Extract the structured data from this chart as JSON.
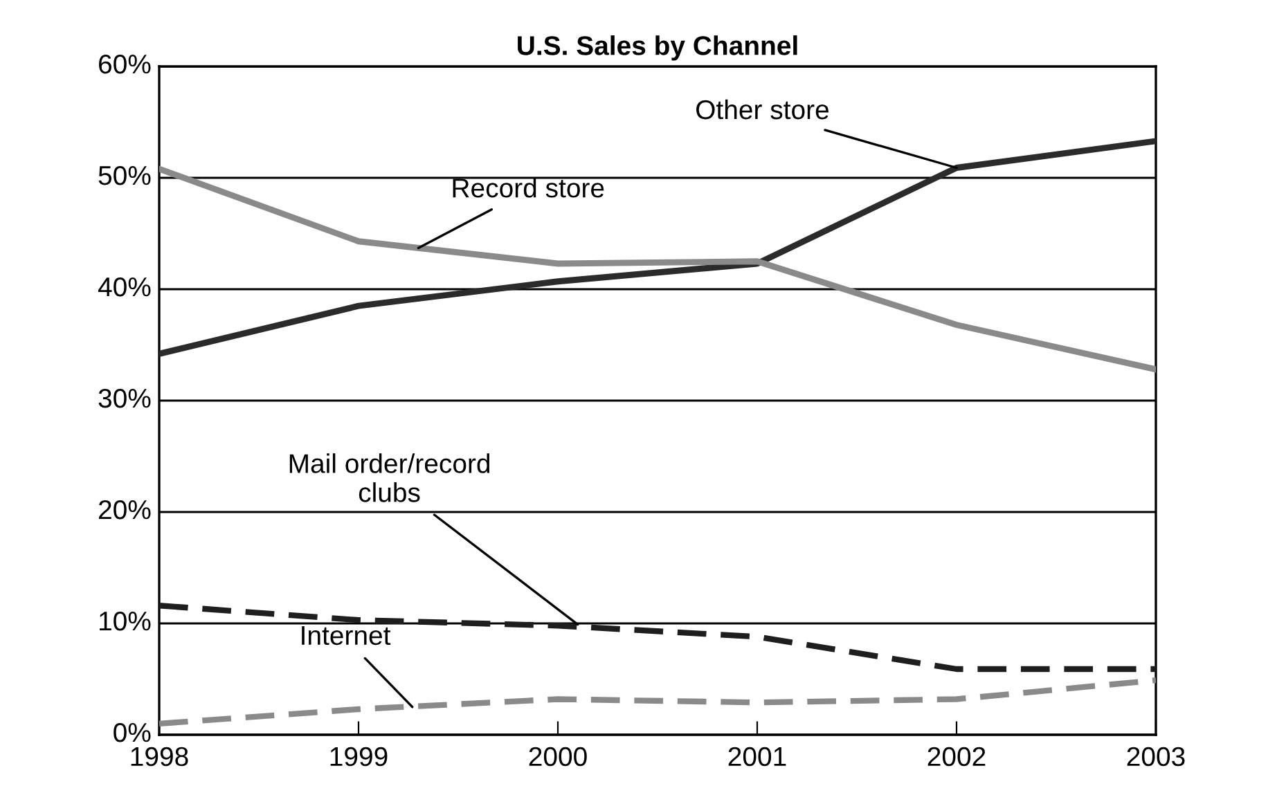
{
  "chart_data": {
    "type": "line",
    "title": "U.S. Sales by Channel",
    "x": [
      1998,
      1999,
      2000,
      2001,
      2002,
      2003
    ],
    "xlim": [
      1998,
      2003
    ],
    "xticks": [
      1998,
      1999,
      2000,
      2001,
      2002,
      2003
    ],
    "ylim": [
      0,
      60
    ],
    "yticks": [
      {
        "value": 0,
        "label": "0%"
      },
      {
        "value": 10,
        "label": "10%"
      },
      {
        "value": 20,
        "label": "20%"
      },
      {
        "value": 30,
        "label": "30%"
      },
      {
        "value": 40,
        "label": "40%"
      },
      {
        "value": 50,
        "label": "50%"
      },
      {
        "value": 60,
        "label": "60%"
      }
    ],
    "grid": "y",
    "series": [
      {
        "color": "#2b2b2b",
        "line_style": "solid",
        "values": [
          34.2,
          38.5,
          40.7,
          42.3,
          50.9,
          53.3
        ]
      },
      {
        "color": "#8a8a8a",
        "line_style": "solid",
        "values": [
          50.8,
          44.3,
          42.3,
          42.5,
          36.8,
          32.8
        ]
      },
      {
        "color": "#1e1e1e",
        "line_style": "dashed",
        "values": [
          11.6,
          10.3,
          9.8,
          8.8,
          5.9,
          5.9
        ]
      },
      {
        "color": "#8a8a8a",
        "line_style": "dashed",
        "values": [
          1.0,
          2.3,
          3.2,
          2.9,
          3.2,
          4.9
        ]
      }
    ],
    "annotations": [
      {
        "text": "Other store",
        "x": 2002.0,
        "y": 50.9
      },
      {
        "text": "Record store",
        "x": 1999.3,
        "y": 43.7
      },
      {
        "text": "Mail order/record\nclubs",
        "x": 2000.1,
        "y": 9.9
      },
      {
        "text": "Internet",
        "x": 1999.27,
        "y": 2.5
      }
    ]
  }
}
